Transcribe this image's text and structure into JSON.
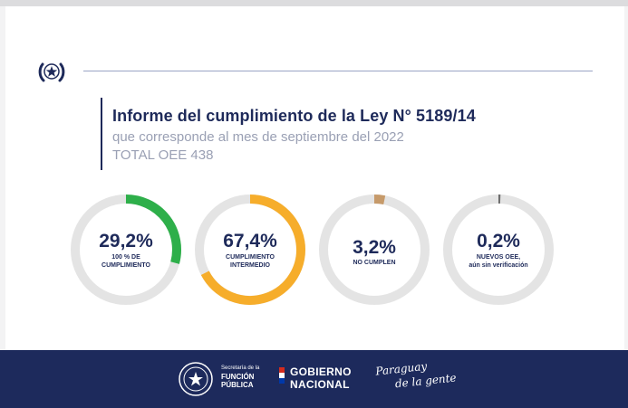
{
  "header": {
    "title": "Informe del cumplimiento de la Ley N° 5189/14",
    "subtitle_line1": "que  corresponde al mes de septiembre del 2022",
    "subtitle_line2": "TOTAL OEE 438"
  },
  "gauges": [
    {
      "value_text": "29,2%",
      "value": 29.2,
      "caption_lines": [
        "100 % DE",
        "CUMPLIMIENTO"
      ],
      "color": "#2eaf4a"
    },
    {
      "value_text": "67,4%",
      "value": 67.4,
      "caption_lines": [
        "CUMPLIMIENTO",
        "INTERMEDIO"
      ],
      "color": "#f6ad2b"
    },
    {
      "value_text": "3,2%",
      "value": 3.2,
      "caption_lines": [
        "NO CUMPLEN"
      ],
      "color": "#c69a6a"
    },
    {
      "value_text": "0,2%",
      "value": 0.2,
      "caption_lines": [
        "NUEVOS OEE,",
        "aún sin verificación"
      ],
      "color": "#6e6e6e"
    }
  ],
  "colors": {
    "navy": "#1d2a5c",
    "track": "#e4e4e4",
    "subtitle": "#9aa0b4"
  },
  "footer": {
    "sfp_line1": "Secretaría de la",
    "sfp_line2": "FUNCIÓN",
    "sfp_line3": "PÚBLICA",
    "gob_line1": "GOBIERNO",
    "gob_line2": "NACIONAL",
    "slogan_line1": "Paraguay",
    "slogan_line2": "de la gente"
  }
}
